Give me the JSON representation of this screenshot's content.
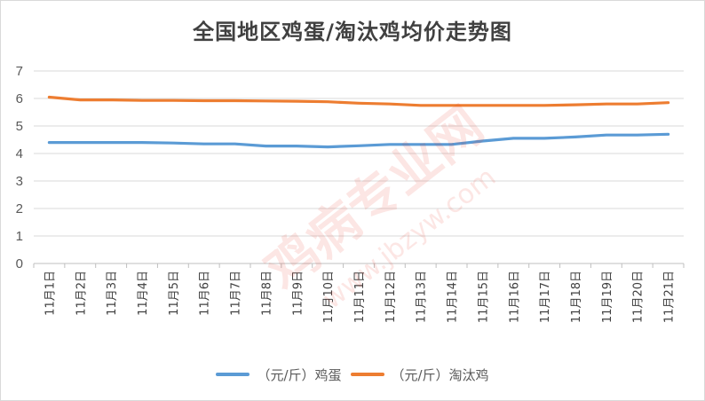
{
  "chart_data": {
    "type": "line",
    "title": "全国地区鸡蛋/淘汰鸡均价走势图",
    "categories": [
      "11月1日",
      "11月2日",
      "11月3日",
      "11月4日",
      "11月5日",
      "11月6日",
      "11月7日",
      "11月8日",
      "11月9日",
      "11月10日",
      "11月11日",
      "11月12日",
      "11月13日",
      "11月14日",
      "11月15日",
      "11月16日",
      "11月17日",
      "11月18日",
      "11月19日",
      "11月20日",
      "11月21日"
    ],
    "ylim": [
      0,
      7
    ],
    "yticks": [
      0,
      1,
      2,
      3,
      4,
      5,
      6,
      7
    ],
    "grid": true,
    "legend_position": "bottom",
    "series": [
      {
        "name": "（元/斤）鸡蛋",
        "color": "#5b9bd5",
        "values": [
          4.4,
          4.4,
          4.4,
          4.4,
          4.38,
          4.35,
          4.35,
          4.27,
          4.27,
          4.24,
          4.28,
          4.33,
          4.33,
          4.33,
          4.45,
          4.55,
          4.55,
          4.6,
          4.67,
          4.67,
          4.7
        ]
      },
      {
        "name": "（元/斤）淘汰鸡",
        "color": "#ed7d31",
        "values": [
          6.05,
          5.95,
          5.95,
          5.93,
          5.93,
          5.92,
          5.92,
          5.91,
          5.9,
          5.88,
          5.83,
          5.8,
          5.75,
          5.75,
          5.75,
          5.75,
          5.75,
          5.77,
          5.8,
          5.8,
          5.85
        ]
      }
    ]
  },
  "watermark": {
    "brand": "鸡病专业网",
    "url": "www.jbzyw.com"
  }
}
